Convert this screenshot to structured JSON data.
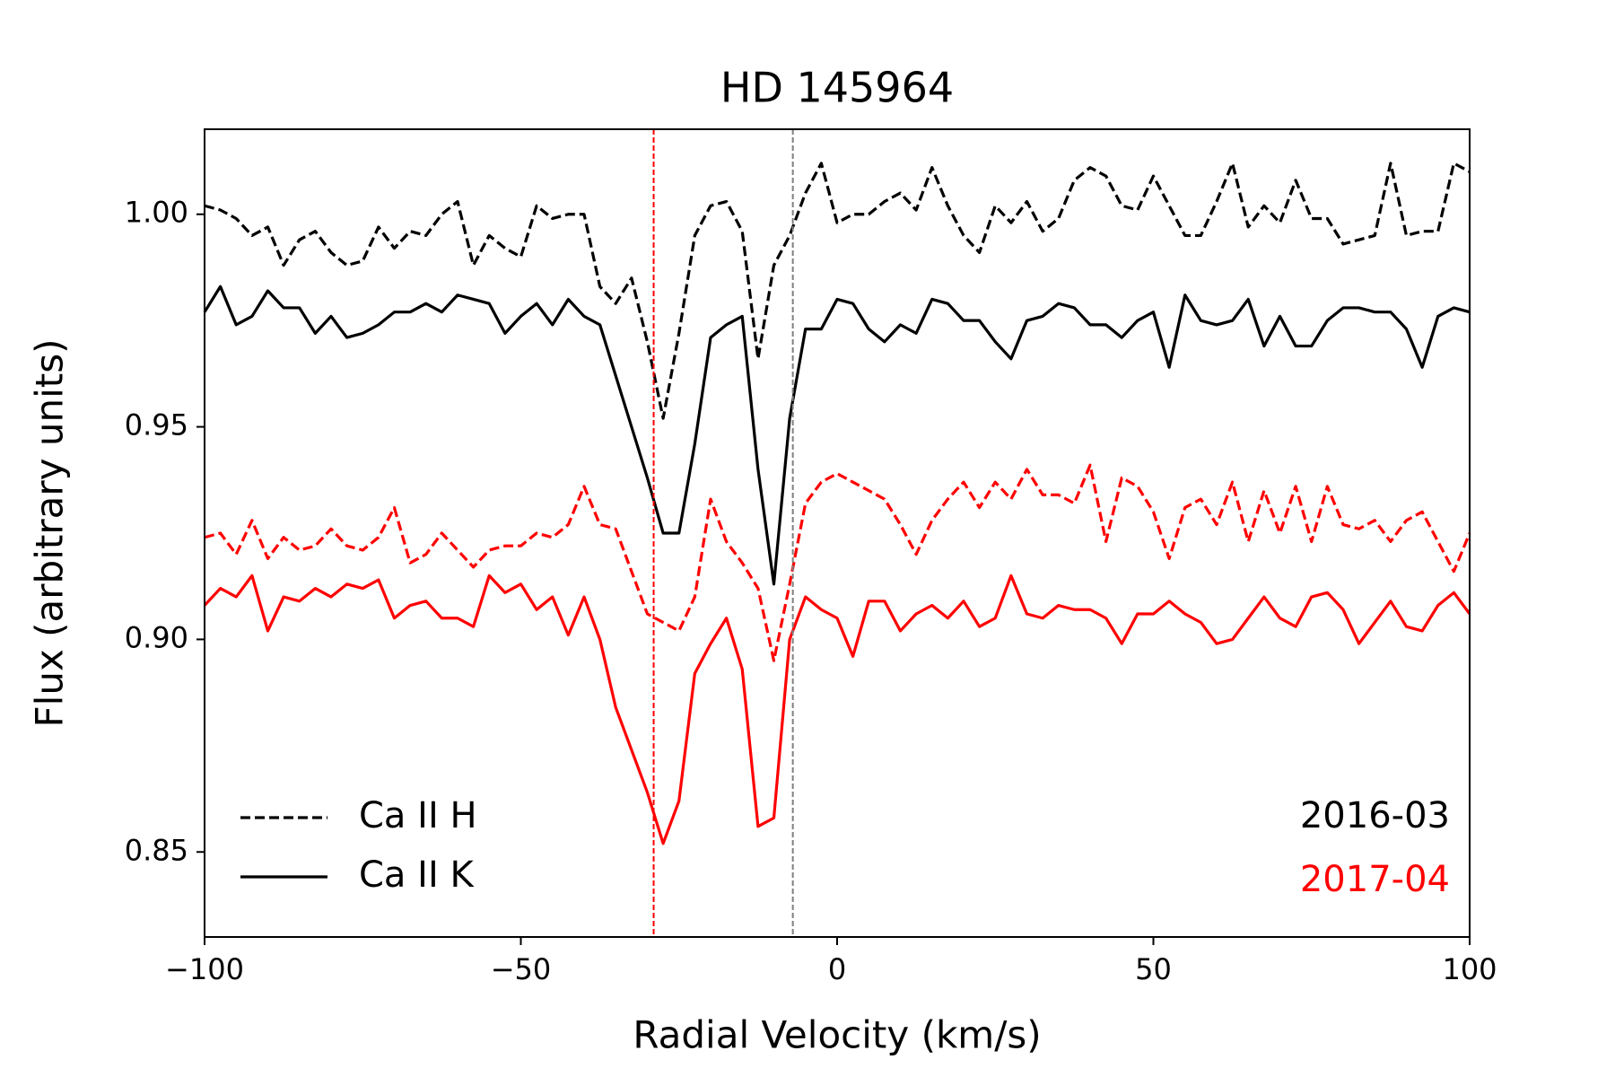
{
  "chart_data": {
    "type": "line",
    "title": "HD 145964",
    "xlabel": "Radial Velocity (km/s)",
    "ylabel": "Flux (arbitrary units)",
    "xlim": [
      -100,
      100
    ],
    "ylim": [
      0.83,
      1.02
    ],
    "xticks": [
      {
        "value": -100,
        "label": "−100"
      },
      {
        "value": -50,
        "label": "−50"
      },
      0,
      50,
      100
    ],
    "yticks": [
      0.85,
      {
        "value": 0.9,
        "label": "0.90"
      },
      0.95,
      {
        "value": 1,
        "label": "1.00"
      }
    ],
    "grid": false,
    "x": [
      -100,
      -97.5,
      -95,
      -92.5,
      -90,
      -87.5,
      -85,
      -82.5,
      -80,
      -77.5,
      -75,
      -72.5,
      -70,
      -67.5,
      -65,
      -62.5,
      -60,
      -57.5,
      -55,
      -52.5,
      -50,
      -47.5,
      -45,
      -42.5,
      -40,
      -37.5,
      -35,
      -32.5,
      -30,
      -27.5,
      -25,
      -22.5,
      -20,
      -17.5,
      -15,
      -12.5,
      -10,
      -7.5,
      -5,
      -2.5,
      0,
      2.5,
      5,
      7.5,
      10,
      12.5,
      15,
      17.5,
      20,
      22.5,
      25,
      27.5,
      30,
      32.5,
      35,
      37.5,
      40,
      42.5,
      45,
      47.5,
      50,
      52.5,
      55,
      57.5,
      60,
      62.5,
      65,
      67.5,
      70,
      72.5,
      75,
      77.5,
      80,
      82.5,
      85,
      87.5,
      90,
      92.5,
      95,
      97.5,
      100
    ],
    "series": [
      {
        "color": "#000000",
        "dash": true,
        "values": [
          1.002,
          1.001,
          0.999,
          0.995,
          0.997,
          0.988,
          0.994,
          0.996,
          0.991,
          0.988,
          0.989,
          0.997,
          0.992,
          0.996,
          0.995,
          1.0,
          1.003,
          0.988,
          0.995,
          0.992,
          0.99,
          1.002,
          0.999,
          1.0,
          1.0,
          0.983,
          0.979,
          0.985,
          0.97,
          0.952,
          0.972,
          0.995,
          1.002,
          1.003,
          0.996,
          0.966,
          0.988,
          0.995,
          1.005,
          1.012,
          0.998,
          1.0,
          1.0,
          1.003,
          1.005,
          1.001,
          1.011,
          1.002,
          0.995,
          0.991,
          1.002,
          0.998,
          1.003,
          0.996,
          0.999,
          1.008,
          1.011,
          1.009,
          1.002,
          1.001,
          1.009,
          1.002,
          0.995,
          0.995,
          1.003,
          1.012,
          0.997,
          1.002,
          0.998,
          1.008,
          0.999,
          0.999,
          0.993,
          0.994,
          0.995,
          1.012,
          0.995,
          0.996,
          0.996,
          1.012,
          1.01
        ]
      },
      {
        "color": "#000000",
        "dash": false,
        "values": [
          0.977,
          0.983,
          0.974,
          0.976,
          0.982,
          0.978,
          0.978,
          0.972,
          0.976,
          0.971,
          0.972,
          0.974,
          0.977,
          0.977,
          0.979,
          0.977,
          0.981,
          0.98,
          0.979,
          0.972,
          0.976,
          0.979,
          0.974,
          0.98,
          0.976,
          0.974,
          0.962,
          0.95,
          0.938,
          0.925,
          0.925,
          0.946,
          0.971,
          0.974,
          0.976,
          0.94,
          0.913,
          0.952,
          0.973,
          0.973,
          0.98,
          0.979,
          0.973,
          0.97,
          0.974,
          0.972,
          0.98,
          0.979,
          0.975,
          0.975,
          0.97,
          0.966,
          0.975,
          0.976,
          0.979,
          0.978,
          0.974,
          0.974,
          0.971,
          0.975,
          0.977,
          0.964,
          0.981,
          0.975,
          0.974,
          0.975,
          0.98,
          0.969,
          0.976,
          0.969,
          0.969,
          0.975,
          0.978,
          0.978,
          0.977,
          0.977,
          0.973,
          0.964,
          0.976,
          0.978,
          0.977
        ]
      },
      {
        "color": "#ff0000",
        "dash": true,
        "values": [
          0.924,
          0.925,
          0.92,
          0.928,
          0.919,
          0.924,
          0.921,
          0.922,
          0.926,
          0.922,
          0.921,
          0.924,
          0.931,
          0.918,
          0.92,
          0.925,
          0.921,
          0.917,
          0.921,
          0.922,
          0.922,
          0.925,
          0.924,
          0.927,
          0.936,
          0.927,
          0.926,
          0.916,
          0.906,
          0.904,
          0.902,
          0.91,
          0.933,
          0.923,
          0.918,
          0.912,
          0.895,
          0.913,
          0.932,
          0.937,
          0.939,
          0.937,
          0.935,
          0.933,
          0.927,
          0.92,
          0.928,
          0.933,
          0.937,
          0.931,
          0.937,
          0.933,
          0.94,
          0.934,
          0.934,
          0.932,
          0.941,
          0.923,
          0.938,
          0.936,
          0.93,
          0.919,
          0.931,
          0.933,
          0.927,
          0.937,
          0.923,
          0.935,
          0.925,
          0.936,
          0.923,
          0.936,
          0.927,
          0.926,
          0.928,
          0.923,
          0.928,
          0.93,
          0.923,
          0.916,
          0.925
        ]
      },
      {
        "color": "#ff0000",
        "dash": false,
        "values": [
          0.908,
          0.912,
          0.91,
          0.915,
          0.902,
          0.91,
          0.909,
          0.912,
          0.91,
          0.913,
          0.912,
          0.914,
          0.905,
          0.908,
          0.909,
          0.905,
          0.905,
          0.903,
          0.915,
          0.911,
          0.913,
          0.907,
          0.91,
          0.901,
          0.91,
          0.9,
          0.884,
          0.874,
          0.864,
          0.852,
          0.862,
          0.892,
          0.899,
          0.905,
          0.893,
          0.856,
          0.858,
          0.9,
          0.91,
          0.907,
          0.905,
          0.896,
          0.909,
          0.909,
          0.902,
          0.906,
          0.908,
          0.905,
          0.909,
          0.903,
          0.905,
          0.915,
          0.906,
          0.905,
          0.908,
          0.907,
          0.907,
          0.905,
          0.899,
          0.906,
          0.906,
          0.909,
          0.906,
          0.904,
          0.899,
          0.9,
          0.905,
          0.91,
          0.905,
          0.903,
          0.91,
          0.911,
          0.907,
          0.899,
          0.904,
          0.909,
          0.903,
          0.902,
          0.908,
          0.911,
          0.906
        ]
      }
    ],
    "vlines": [
      {
        "x": -29,
        "color": "#ff0000"
      },
      {
        "x": -7,
        "color": "#808080"
      }
    ],
    "legend": {
      "loc": "lower left",
      "entries": [
        {
          "name": "Ca II H",
          "dash": true,
          "color": "#000000"
        },
        {
          "name": "Ca II K",
          "dash": false,
          "color": "#000000"
        }
      ]
    },
    "epochs": {
      "loc": "lower right",
      "entries": [
        {
          "name": "2016-03",
          "color": "#000000"
        },
        {
          "name": "2017-04",
          "color": "#ff0000"
        }
      ]
    }
  }
}
